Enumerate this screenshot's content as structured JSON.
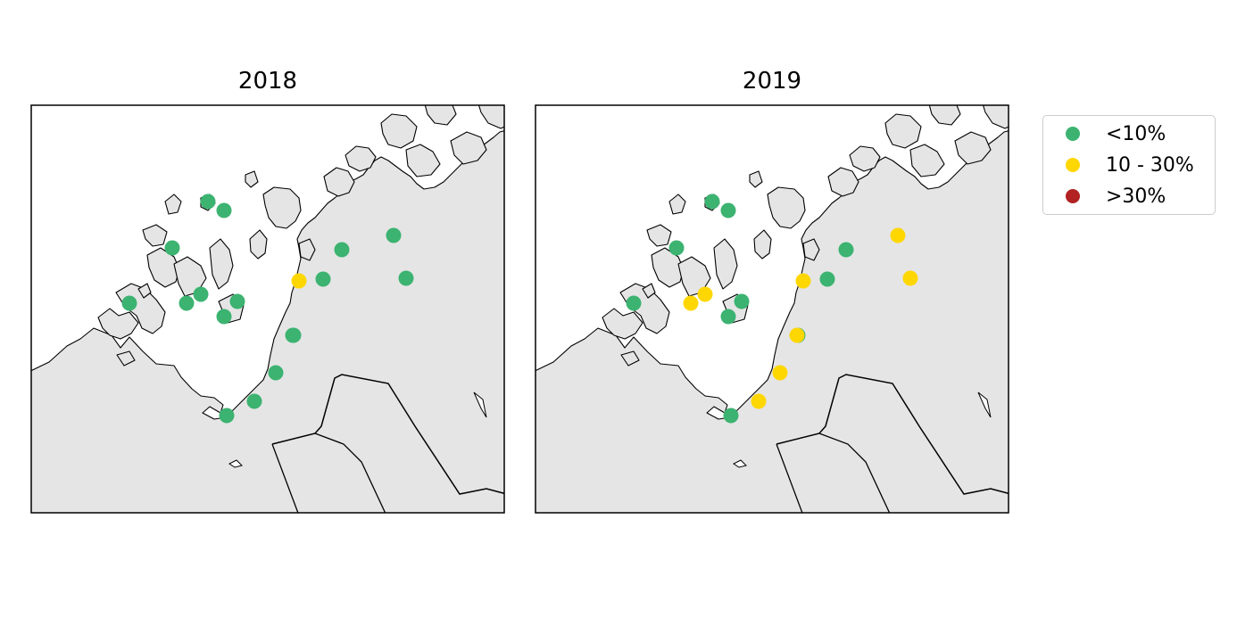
{
  "panels": [
    {
      "title": "2018",
      "sites": [
        "low",
        "low",
        "low",
        "low",
        "low",
        "low",
        "low",
        "low",
        "low",
        "medium",
        "low",
        "low",
        "low",
        "low",
        "low",
        "low",
        "low",
        "low"
      ]
    },
    {
      "title": "2019",
      "sites": [
        "low",
        "low",
        "low",
        "low",
        "medium",
        "medium",
        "low",
        "low",
        "low",
        "medium",
        "low",
        "low",
        "medium",
        "medium",
        "medium",
        "medium",
        "low",
        "medium"
      ]
    }
  ],
  "legend": {
    "items": [
      {
        "key": "low",
        "label": "<10%",
        "color": "#3cb371"
      },
      {
        "key": "medium",
        "label": "10 - 30%",
        "color": "#ffd700"
      },
      {
        "key": "high",
        "label": ">30%",
        "color": "#b22222"
      }
    ]
  },
  "colors": {
    "land": "#e5e5e5",
    "sea": "#ffffff",
    "coastline": "#000000"
  }
}
